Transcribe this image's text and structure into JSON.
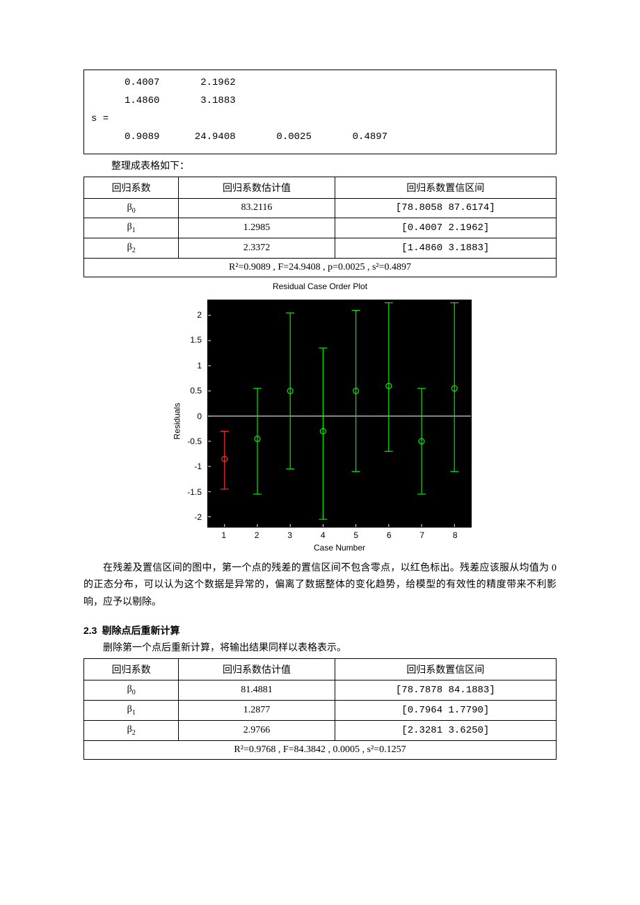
{
  "code": {
    "lines": [
      {
        "indent": "ind1",
        "text": "0.4007       2.1962"
      },
      {
        "indent": "ind1",
        "text": "1.4860       3.1883"
      },
      {
        "indent": "ind0",
        "text": "s ="
      },
      {
        "indent": "ind1",
        "text": "0.9089      24.9408       0.0025       0.4897"
      }
    ]
  },
  "caption1": "整理成表格如下：",
  "table1": {
    "headers": [
      "回归系数",
      "回归系数估计值",
      "回归系数置信区间"
    ],
    "rows": [
      {
        "coef": "β",
        "sub": "0",
        "est": "83.2116",
        "ci": "[78.8058     87.6174]"
      },
      {
        "coef": "β",
        "sub": "1",
        "est": "1.2985",
        "ci": "[0.4007      2.1962]"
      },
      {
        "coef": "β",
        "sub": "2",
        "est": "2.3372",
        "ci": "[1.4860      3.1883]"
      }
    ],
    "stats": "R²=0.9089 , F=24.9408 , p=0.0025 , s²=0.4897"
  },
  "plot": {
    "title": "Residual Case Order Plot",
    "ylabel": "Residuals",
    "xlabel": "Case Number",
    "background": "#000000",
    "axis_color": "#ffffff",
    "marker_size": 4,
    "line_width": 1.2,
    "yticks": [
      -2,
      -1.5,
      -1,
      -0.5,
      0,
      0.5,
      1,
      1.5,
      2
    ],
    "ylim": [
      -2.2,
      2.3
    ],
    "xticks": [
      1,
      2,
      3,
      4,
      5,
      6,
      7,
      8
    ],
    "xlim": [
      0.5,
      8.5
    ],
    "colors": {
      "normal": "#00ee00",
      "outlier": "#ff3030"
    },
    "cases": [
      {
        "x": 1,
        "res": -0.85,
        "lo": -1.45,
        "hi": -0.3,
        "outlier": true
      },
      {
        "x": 2,
        "res": -0.45,
        "lo": -1.55,
        "hi": 0.55,
        "outlier": false
      },
      {
        "x": 3,
        "res": 0.5,
        "lo": -1.05,
        "hi": 2.05,
        "outlier": false
      },
      {
        "x": 4,
        "res": -0.3,
        "lo": -2.05,
        "hi": 1.35,
        "outlier": false
      },
      {
        "x": 5,
        "res": 0.5,
        "lo": -1.1,
        "hi": 2.1,
        "outlier": false
      },
      {
        "x": 6,
        "res": 0.6,
        "lo": -0.7,
        "hi": 2.25,
        "outlier": false
      },
      {
        "x": 7,
        "res": -0.5,
        "lo": -1.55,
        "hi": 0.55,
        "outlier": false
      },
      {
        "x": 8,
        "res": 0.55,
        "lo": -1.1,
        "hi": 2.25,
        "outlier": false
      }
    ]
  },
  "para1": "在残差及置信区间的图中，第一个点的残差的置信区间不包含零点，以红色标出。残差应该服从均值为 0 的正态分布，可以认为这个数据是异常的，偏离了数据整体的变化趋势，给模型的有效性的精度带来不利影响，应予以剔除。",
  "section": {
    "num": "2.3",
    "title": "剔除点后重新计算"
  },
  "caption2": "删除第一个点后重新计算，将输出结果同样以表格表示。",
  "table2": {
    "headers": [
      "回归系数",
      "回归系数估计值",
      "回归系数置信区间"
    ],
    "rows": [
      {
        "coef": "β",
        "sub": "0",
        "est": "81.4881",
        "ci": "[78.7878     84.1883]"
      },
      {
        "coef": "β",
        "sub": "1",
        "est": "1.2877",
        "ci": "[0.7964      1.7790]"
      },
      {
        "coef": "β",
        "sub": "2",
        "est": "2.9766",
        "ci": "[2.3281      3.6250]"
      }
    ],
    "stats": "R²=0.9768 , F=84.3842 , 0.0005 , s²=0.1257"
  }
}
